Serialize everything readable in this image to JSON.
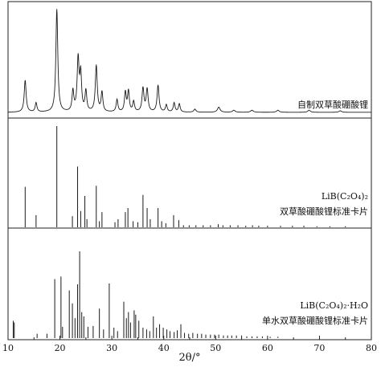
{
  "chart_data": {
    "type": "line",
    "xlabel": "2θ/°",
    "xlim": [
      10,
      80
    ],
    "x_ticks": [
      "10",
      "20",
      "30",
      "40",
      "50",
      "60",
      "70",
      "80"
    ],
    "grid": false,
    "panels": [
      {
        "id": "top",
        "kind": "profile",
        "labels": [
          "自制双草酸硼酸锂"
        ],
        "baseline": 0.04,
        "peaks": [
          {
            "x": 13.3,
            "y": 0.31,
            "w": 0.22
          },
          {
            "x": 15.4,
            "y": 0.09,
            "w": 0.2
          },
          {
            "x": 19.4,
            "y": 1.0,
            "w": 0.22
          },
          {
            "x": 22.5,
            "y": 0.2,
            "w": 0.2
          },
          {
            "x": 23.5,
            "y": 0.51,
            "w": 0.22
          },
          {
            "x": 24.0,
            "y": 0.35,
            "w": 0.2
          },
          {
            "x": 25.0,
            "y": 0.2,
            "w": 0.2
          },
          {
            "x": 27.0,
            "y": 0.45,
            "w": 0.22
          },
          {
            "x": 28.1,
            "y": 0.19,
            "w": 0.2
          },
          {
            "x": 31.0,
            "y": 0.12,
            "w": 0.2
          },
          {
            "x": 32.6,
            "y": 0.19,
            "w": 0.2
          },
          {
            "x": 33.2,
            "y": 0.2,
            "w": 0.2
          },
          {
            "x": 34.2,
            "y": 0.1,
            "w": 0.2
          },
          {
            "x": 36.0,
            "y": 0.23,
            "w": 0.22
          },
          {
            "x": 36.8,
            "y": 0.22,
            "w": 0.22
          },
          {
            "x": 38.9,
            "y": 0.26,
            "w": 0.22
          },
          {
            "x": 40.5,
            "y": 0.07,
            "w": 0.2
          },
          {
            "x": 42.0,
            "y": 0.09,
            "w": 0.2
          },
          {
            "x": 43.0,
            "y": 0.08,
            "w": 0.2
          },
          {
            "x": 46.0,
            "y": 0.03,
            "w": 0.25
          },
          {
            "x": 50.6,
            "y": 0.05,
            "w": 0.3
          },
          {
            "x": 53.5,
            "y": 0.02,
            "w": 0.3
          },
          {
            "x": 57.0,
            "y": 0.02,
            "w": 0.3
          },
          {
            "x": 62.0,
            "y": 0.02,
            "w": 0.3
          },
          {
            "x": 68.0,
            "y": 0.02,
            "w": 0.3
          },
          {
            "x": 74.0,
            "y": 0.015,
            "w": 0.3
          }
        ]
      },
      {
        "id": "middle",
        "kind": "sticks",
        "labels": [
          "LiB(C₂O₄)₂",
          "双草酸硼酸锂标准卡片"
        ],
        "sticks": [
          [
            13.3,
            0.4
          ],
          [
            15.4,
            0.12
          ],
          [
            19.4,
            1.0
          ],
          [
            22.4,
            0.11
          ],
          [
            23.4,
            0.6
          ],
          [
            24.0,
            0.16
          ],
          [
            24.8,
            0.31
          ],
          [
            25.2,
            0.08
          ],
          [
            27.0,
            0.41
          ],
          [
            27.6,
            0.06
          ],
          [
            28.1,
            0.15
          ],
          [
            30.6,
            0.05
          ],
          [
            31.2,
            0.08
          ],
          [
            32.6,
            0.15
          ],
          [
            33.1,
            0.19
          ],
          [
            34.1,
            0.06
          ],
          [
            35.0,
            0.05
          ],
          [
            36.0,
            0.32
          ],
          [
            36.8,
            0.19
          ],
          [
            37.4,
            0.08
          ],
          [
            38.9,
            0.19
          ],
          [
            39.6,
            0.06
          ],
          [
            40.4,
            0.04
          ],
          [
            41.9,
            0.12
          ],
          [
            42.9,
            0.07
          ],
          [
            43.8,
            0.02
          ],
          [
            44.9,
            0.02
          ],
          [
            46.2,
            0.02
          ],
          [
            47.6,
            0.02
          ],
          [
            49.0,
            0.02
          ],
          [
            50.5,
            0.03
          ],
          [
            51.4,
            0.02
          ],
          [
            52.8,
            0.02
          ],
          [
            54.3,
            0.02
          ],
          [
            55.8,
            0.015
          ],
          [
            57.1,
            0.02
          ],
          [
            58.3,
            0.015
          ],
          [
            60.0,
            0.015
          ],
          [
            62.5,
            0.015
          ],
          [
            64.8,
            0.015
          ],
          [
            67.0,
            0.015
          ],
          [
            69.5,
            0.01
          ],
          [
            72.0,
            0.01
          ],
          [
            75.0,
            0.01
          ]
        ]
      },
      {
        "id": "bottom",
        "kind": "sticks",
        "labels": [
          "LiB(C₂O₄)₂·H₂O",
          "单水双草酸硼酸锂标准卡片"
        ],
        "sticks": [
          [
            11.0,
            0.2
          ],
          [
            11.2,
            0.18
          ],
          [
            15.6,
            0.05
          ],
          [
            17.5,
            0.05
          ],
          [
            19.0,
            0.68
          ],
          [
            20.2,
            0.71
          ],
          [
            20.5,
            0.13
          ],
          [
            21.8,
            0.55
          ],
          [
            22.4,
            0.4
          ],
          [
            22.9,
            0.23
          ],
          [
            23.4,
            0.62
          ],
          [
            23.8,
            1.0
          ],
          [
            24.2,
            0.3
          ],
          [
            24.6,
            0.25
          ],
          [
            25.4,
            0.13
          ],
          [
            26.4,
            0.14
          ],
          [
            27.6,
            0.34
          ],
          [
            28.4,
            0.1
          ],
          [
            29.5,
            0.63
          ],
          [
            30.4,
            0.12
          ],
          [
            31.1,
            0.08
          ],
          [
            32.3,
            0.42
          ],
          [
            32.8,
            0.23
          ],
          [
            33.2,
            0.3
          ],
          [
            33.6,
            0.18
          ],
          [
            34.3,
            0.32
          ],
          [
            34.6,
            0.27
          ],
          [
            35.2,
            0.2
          ],
          [
            36.0,
            0.12
          ],
          [
            36.7,
            0.1
          ],
          [
            37.3,
            0.08
          ],
          [
            38.0,
            0.25
          ],
          [
            38.6,
            0.12
          ],
          [
            39.2,
            0.16
          ],
          [
            39.9,
            0.12
          ],
          [
            40.6,
            0.1
          ],
          [
            41.2,
            0.08
          ],
          [
            42.0,
            0.07
          ],
          [
            42.6,
            0.09
          ],
          [
            43.3,
            0.16
          ],
          [
            44.0,
            0.06
          ],
          [
            44.8,
            0.05
          ],
          [
            45.6,
            0.06
          ],
          [
            46.5,
            0.05
          ],
          [
            47.3,
            0.05
          ],
          [
            48.1,
            0.04
          ],
          [
            49.0,
            0.04
          ],
          [
            49.8,
            0.04
          ],
          [
            50.6,
            0.04
          ],
          [
            51.5,
            0.03
          ],
          [
            52.3,
            0.03
          ],
          [
            53.1,
            0.03
          ],
          [
            54.0,
            0.03
          ],
          [
            55.0,
            0.03
          ],
          [
            56.0,
            0.02
          ],
          [
            57.0,
            0.02
          ],
          [
            58.0,
            0.02
          ],
          [
            59.0,
            0.02
          ],
          [
            60.5,
            0.015
          ],
          [
            62.0,
            0.015
          ]
        ]
      }
    ]
  }
}
